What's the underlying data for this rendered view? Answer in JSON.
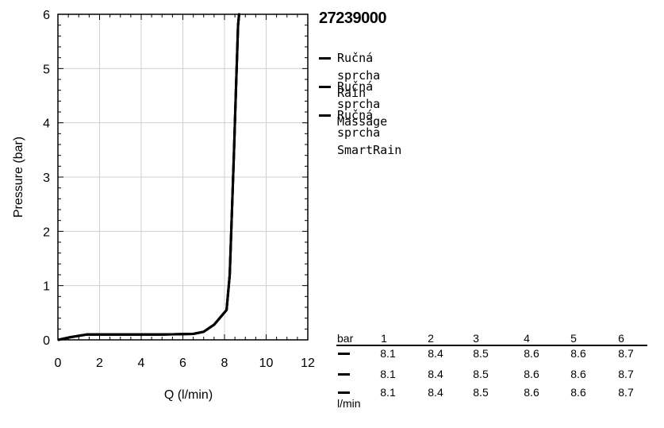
{
  "chart_data": {
    "type": "line",
    "title": "27239000",
    "xlabel": "Q (l/min)",
    "ylabel": "Pressure (bar)",
    "xlim": [
      0,
      12
    ],
    "ylim": [
      0,
      6
    ],
    "xticks": [
      "0",
      "2",
      "4",
      "6",
      "8",
      "10",
      "12"
    ],
    "yticks": [
      "0",
      "1",
      "2",
      "3",
      "4",
      "5",
      "6"
    ],
    "grid": true,
    "legend_position": "right",
    "series": [
      {
        "name": "Ručná sprcha Rain",
        "color": "#000000",
        "points": [
          [
            0,
            0
          ],
          [
            0.6,
            0.05
          ],
          [
            1.4,
            0.1
          ],
          [
            3,
            0.1
          ],
          [
            5,
            0.1
          ],
          [
            6.5,
            0.11
          ],
          [
            7.0,
            0.15
          ],
          [
            7.5,
            0.28
          ],
          [
            8.1,
            0.55
          ],
          [
            8.25,
            1.2
          ],
          [
            8.35,
            2.3
          ],
          [
            8.45,
            3.4
          ],
          [
            8.55,
            4.6
          ],
          [
            8.65,
            5.8
          ],
          [
            8.7,
            6.0
          ]
        ]
      },
      {
        "name": "Ručná sprcha Massage",
        "color": "#000000",
        "points": [
          [
            0,
            0
          ],
          [
            0.6,
            0.05
          ],
          [
            1.4,
            0.1
          ],
          [
            3,
            0.1
          ],
          [
            5,
            0.1
          ],
          [
            6.5,
            0.11
          ],
          [
            7.0,
            0.15
          ],
          [
            7.5,
            0.28
          ],
          [
            8.1,
            0.55
          ],
          [
            8.25,
            1.2
          ],
          [
            8.35,
            2.3
          ],
          [
            8.45,
            3.4
          ],
          [
            8.55,
            4.6
          ],
          [
            8.65,
            5.8
          ],
          [
            8.7,
            6.0
          ]
        ]
      },
      {
        "name": "Ručná sprcha SmartRain",
        "color": "#000000",
        "points": [
          [
            0,
            0
          ],
          [
            0.6,
            0.05
          ],
          [
            1.4,
            0.1
          ],
          [
            3,
            0.1
          ],
          [
            5,
            0.1
          ],
          [
            6.5,
            0.11
          ],
          [
            7.0,
            0.15
          ],
          [
            7.5,
            0.28
          ],
          [
            8.1,
            0.55
          ],
          [
            8.25,
            1.2
          ],
          [
            8.35,
            2.3
          ],
          [
            8.45,
            3.4
          ],
          [
            8.55,
            4.6
          ],
          [
            8.65,
            5.8
          ],
          [
            8.7,
            6.0
          ]
        ]
      }
    ],
    "table": {
      "pressure_unit": "bar",
      "flow_unit": "l/min",
      "pressures": [
        "1",
        "2",
        "3",
        "4",
        "5",
        "6"
      ],
      "rows": [
        [
          "8.1",
          "8.4",
          "8.5",
          "8.6",
          "8.6",
          "8.7"
        ],
        [
          "8.1",
          "8.4",
          "8.5",
          "8.6",
          "8.6",
          "8.7"
        ],
        [
          "8.1",
          "8.4",
          "8.5",
          "8.6",
          "8.6",
          "8.7"
        ]
      ]
    }
  }
}
